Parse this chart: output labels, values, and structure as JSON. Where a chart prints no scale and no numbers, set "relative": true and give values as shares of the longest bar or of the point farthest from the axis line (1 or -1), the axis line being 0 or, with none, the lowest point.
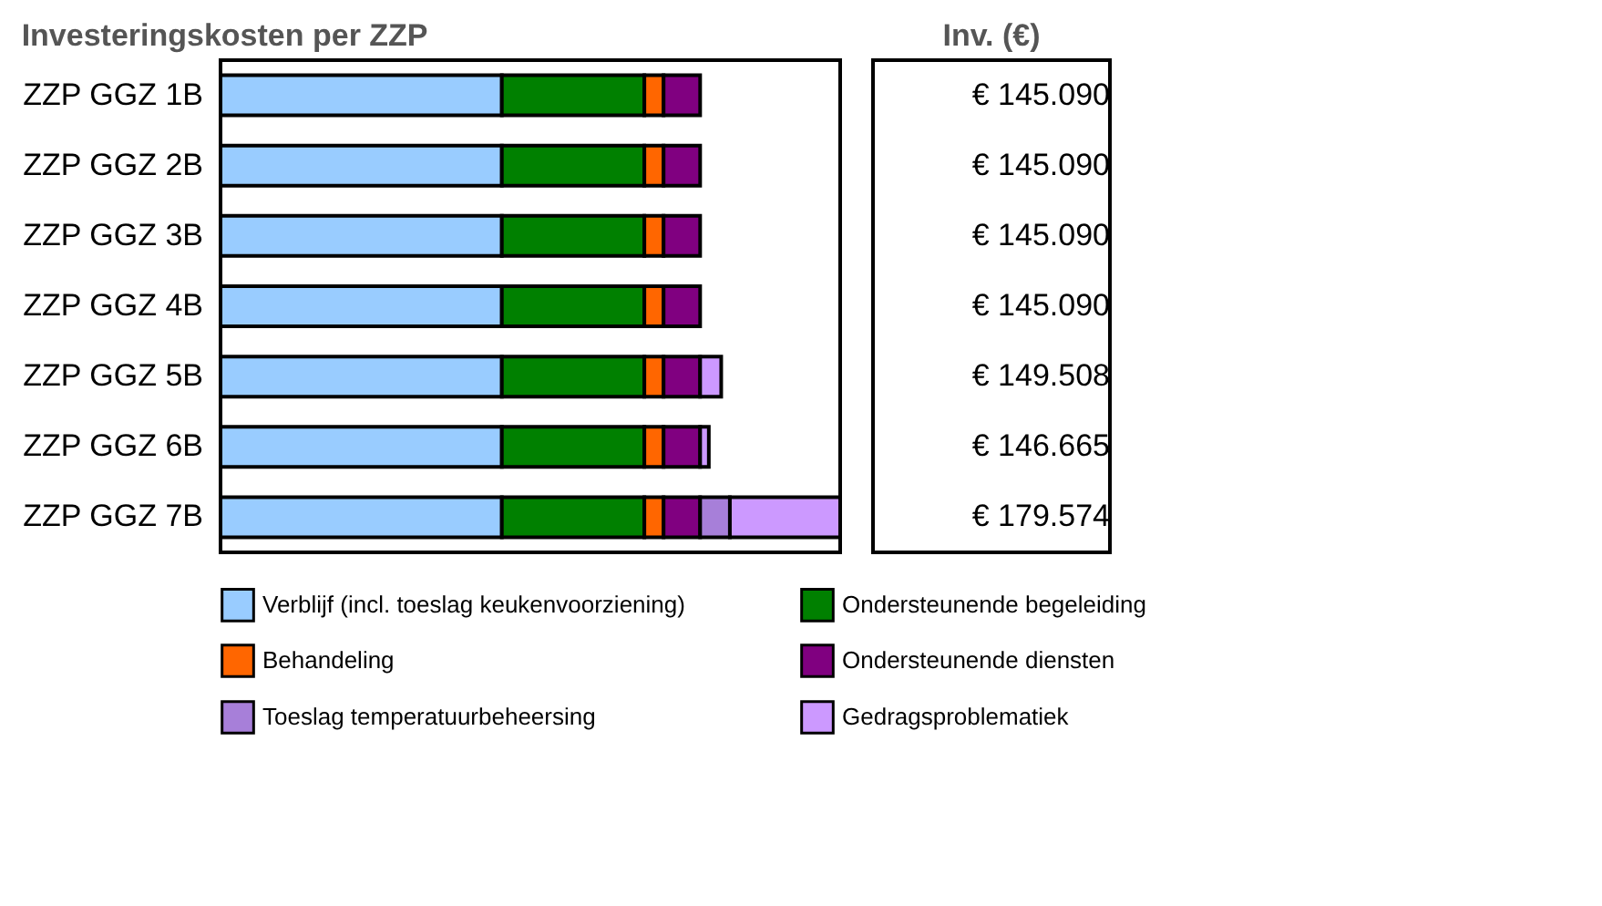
{
  "chart_data": [
    {
      "type": "bar",
      "orientation": "horizontal",
      "stacked": true,
      "relative": true,
      "title": "Investeringskosten per ZZP",
      "categories": [
        "ZZP GGZ 1B",
        "ZZP GGZ 2B",
        "ZZP GGZ 3B",
        "ZZP GGZ 4B",
        "ZZP GGZ 5B",
        "ZZP GGZ 6B",
        "ZZP GGZ 7B"
      ],
      "series": [
        {
          "name": "Verblijf (incl. toeslag keukenvoorziening)",
          "color": "#99ccff",
          "values": [
            0.454,
            0.454,
            0.454,
            0.454,
            0.454,
            0.454,
            0.454
          ]
        },
        {
          "name": "Ondersteunende begeleiding",
          "color": "#008000",
          "values": [
            0.23,
            0.23,
            0.23,
            0.23,
            0.23,
            0.23,
            0.23
          ]
        },
        {
          "name": "Behandeling",
          "color": "#ff6600",
          "values": [
            0.031,
            0.031,
            0.031,
            0.031,
            0.031,
            0.031,
            0.031
          ]
        },
        {
          "name": "Ondersteunende diensten",
          "color": "#800080",
          "values": [
            0.059,
            0.059,
            0.059,
            0.059,
            0.059,
            0.059,
            0.059
          ]
        },
        {
          "name": "Toeslag temperatuurbeheersing",
          "color": "#a77fd9",
          "values": [
            null,
            null,
            null,
            null,
            null,
            null,
            0.048
          ]
        },
        {
          "name": "Gedragsproblematiek",
          "color": "#cc99ff",
          "values": [
            null,
            null,
            null,
            null,
            0.034,
            0.014,
            0.178
          ]
        }
      ],
      "legend": "bottom"
    },
    {
      "type": "other",
      "title": "Inv. (€)",
      "annotations": [
        "€ 145.090",
        "€ 145.090",
        "€ 145.090",
        "€ 145.090",
        "€ 149.508",
        "€ 146.665",
        "€ 179.574"
      ]
    }
  ]
}
